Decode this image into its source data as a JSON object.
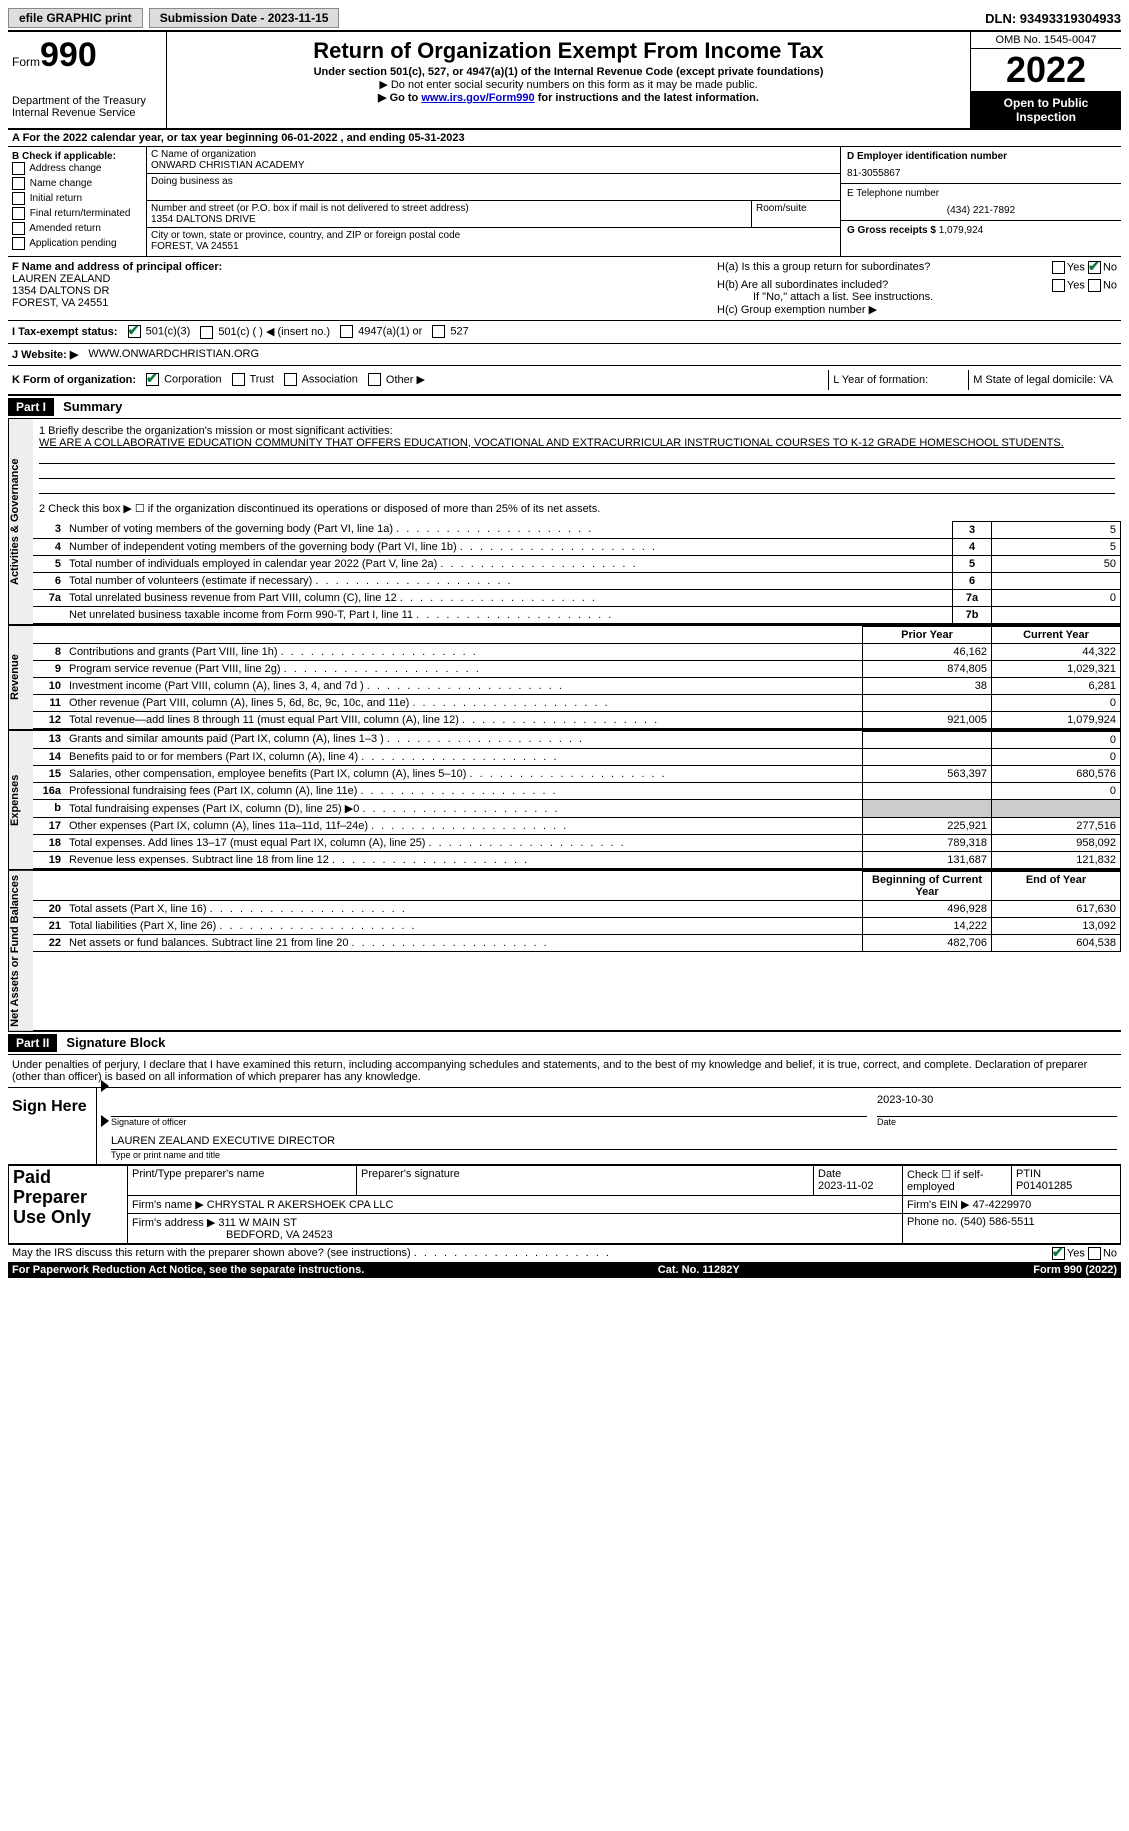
{
  "top": {
    "efile": "efile GRAPHIC print",
    "submission": "Submission Date - 2023-11-15",
    "dln": "DLN: 93493319304933"
  },
  "header": {
    "form_prefix": "Form",
    "form_no": "990",
    "dept": "Department of the Treasury\nInternal Revenue Service",
    "title": "Return of Organization Exempt From Income Tax",
    "subtitle": "Under section 501(c), 527, or 4947(a)(1) of the Internal Revenue Code (except private foundations)",
    "note1": "▶ Do not enter social security numbers on this form as it may be made public.",
    "note2_pre": "▶ Go to ",
    "note2_link": "www.irs.gov/Form990",
    "note2_post": " for instructions and the latest information.",
    "omb": "OMB No. 1545-0047",
    "year": "2022",
    "open": "Open to Public Inspection"
  },
  "row_a": "A For the 2022 calendar year, or tax year beginning 06-01-2022    , and ending 05-31-2023",
  "col_b": {
    "label": "B Check if applicable:",
    "opts": [
      "Address change",
      "Name change",
      "Initial return",
      "Final return/terminated",
      "Amended return",
      "Application pending"
    ]
  },
  "col_c": {
    "name_label": "C Name of organization",
    "name": "ONWARD CHRISTIAN ACADEMY",
    "dba_label": "Doing business as",
    "addr_label": "Number and street (or P.O. box if mail is not delivered to street address)",
    "room_label": "Room/suite",
    "addr": "1354 DALTONS DRIVE",
    "city_label": "City or town, state or province, country, and ZIP or foreign postal code",
    "city": "FOREST, VA  24551"
  },
  "col_d": {
    "ein_label": "D Employer identification number",
    "ein": "81-3055867",
    "phone_label": "E Telephone number",
    "phone": "(434) 221-7892",
    "gross_label": "G Gross receipts $",
    "gross": "1,079,924"
  },
  "f": {
    "label": "F Name and address of principal officer:",
    "name": "LAUREN ZEALAND",
    "addr1": "1354 DALTONS DR",
    "addr2": "FOREST, VA  24551"
  },
  "h": {
    "a": "H(a)  Is this a group return for subordinates?",
    "b": "H(b)  Are all subordinates included?",
    "b_note": "If \"No,\" attach a list. See instructions.",
    "c": "H(c)  Group exemption number ▶",
    "yes": "Yes",
    "no": "No"
  },
  "status": {
    "label": "I   Tax-exempt status:",
    "o1": "501(c)(3)",
    "o2": "501(c) (   ) ◀ (insert no.)",
    "o3": "4947(a)(1) or",
    "o4": "527"
  },
  "website": {
    "label": "J   Website: ▶",
    "value": "WWW.ONWARDCHRISTIAN.ORG"
  },
  "k": {
    "label": "K Form of organization:",
    "o1": "Corporation",
    "o2": "Trust",
    "o3": "Association",
    "o4": "Other ▶",
    "l": "L Year of formation:",
    "m": "M State of legal domicile: VA"
  },
  "part1": {
    "hdr": "Part I",
    "title": "Summary",
    "mission_label": "1   Briefly describe the organization's mission or most significant activities:",
    "mission": "WE ARE A COLLABORATIVE EDUCATION COMMUNITY THAT OFFERS EDUCATION, VOCATIONAL AND EXTRACURRICULAR INSTRUCTIONAL COURSES TO K-12 GRADE HOMESCHOOL STUDENTS.",
    "line2": "2   Check this box ▶ ☐  if the organization discontinued its operations or disposed of more than 25% of its net assets.",
    "gov_rows": [
      {
        "n": "3",
        "t": "Number of voting members of the governing body (Part VI, line 1a)",
        "b": "3",
        "v": "5"
      },
      {
        "n": "4",
        "t": "Number of independent voting members of the governing body (Part VI, line 1b)",
        "b": "4",
        "v": "5"
      },
      {
        "n": "5",
        "t": "Total number of individuals employed in calendar year 2022 (Part V, line 2a)",
        "b": "5",
        "v": "50"
      },
      {
        "n": "6",
        "t": "Total number of volunteers (estimate if necessary)",
        "b": "6",
        "v": ""
      },
      {
        "n": "7a",
        "t": "Total unrelated business revenue from Part VIII, column (C), line 12",
        "b": "7a",
        "v": "0"
      },
      {
        "n": "",
        "t": "Net unrelated business taxable income from Form 990-T, Part I, line 11",
        "b": "7b",
        "v": ""
      }
    ],
    "hdr_prior": "Prior Year",
    "hdr_current": "Current Year",
    "rev_rows": [
      {
        "n": "8",
        "t": "Contributions and grants (Part VIII, line 1h)",
        "p": "46,162",
        "c": "44,322"
      },
      {
        "n": "9",
        "t": "Program service revenue (Part VIII, line 2g)",
        "p": "874,805",
        "c": "1,029,321"
      },
      {
        "n": "10",
        "t": "Investment income (Part VIII, column (A), lines 3, 4, and 7d )",
        "p": "38",
        "c": "6,281"
      },
      {
        "n": "11",
        "t": "Other revenue (Part VIII, column (A), lines 5, 6d, 8c, 9c, 10c, and 11e)",
        "p": "",
        "c": "0"
      },
      {
        "n": "12",
        "t": "Total revenue—add lines 8 through 11 (must equal Part VIII, column (A), line 12)",
        "p": "921,005",
        "c": "1,079,924"
      }
    ],
    "exp_rows": [
      {
        "n": "13",
        "t": "Grants and similar amounts paid (Part IX, column (A), lines 1–3 )",
        "p": "",
        "c": "0"
      },
      {
        "n": "14",
        "t": "Benefits paid to or for members (Part IX, column (A), line 4)",
        "p": "",
        "c": "0"
      },
      {
        "n": "15",
        "t": "Salaries, other compensation, employee benefits (Part IX, column (A), lines 5–10)",
        "p": "563,397",
        "c": "680,576"
      },
      {
        "n": "16a",
        "t": "Professional fundraising fees (Part IX, column (A), line 11e)",
        "p": "",
        "c": "0"
      },
      {
        "n": "b",
        "t": "Total fundraising expenses (Part IX, column (D), line 25) ▶0",
        "p": "shade",
        "c": "shade"
      },
      {
        "n": "17",
        "t": "Other expenses (Part IX, column (A), lines 11a–11d, 11f–24e)",
        "p": "225,921",
        "c": "277,516"
      },
      {
        "n": "18",
        "t": "Total expenses. Add lines 13–17 (must equal Part IX, column (A), line 25)",
        "p": "789,318",
        "c": "958,092"
      },
      {
        "n": "19",
        "t": "Revenue less expenses. Subtract line 18 from line 12",
        "p": "131,687",
        "c": "121,832"
      }
    ],
    "hdr_begin": "Beginning of Current Year",
    "hdr_end": "End of Year",
    "net_rows": [
      {
        "n": "20",
        "t": "Total assets (Part X, line 16)",
        "p": "496,928",
        "c": "617,630"
      },
      {
        "n": "21",
        "t": "Total liabilities (Part X, line 26)",
        "p": "14,222",
        "c": "13,092"
      },
      {
        "n": "22",
        "t": "Net assets or fund balances. Subtract line 21 from line 20",
        "p": "482,706",
        "c": "604,538"
      }
    ],
    "side_gov": "Activities & Governance",
    "side_rev": "Revenue",
    "side_exp": "Expenses",
    "side_net": "Net Assets or Fund Balances"
  },
  "part2": {
    "hdr": "Part II",
    "title": "Signature Block",
    "decl": "Under penalties of perjury, I declare that I have examined this return, including accompanying schedules and statements, and to the best of my knowledge and belief, it is true, correct, and complete. Declaration of preparer (other than officer) is based on all information of which preparer has any knowledge.",
    "sign_here": "Sign Here",
    "sig_officer": "Signature of officer",
    "sig_date": "2023-10-30",
    "date_label": "Date",
    "officer_name": "LAUREN ZEALAND  EXECUTIVE DIRECTOR",
    "type_name": "Type or print name and title",
    "paid": "Paid Preparer Use Only",
    "p_name_label": "Print/Type preparer's name",
    "p_sig_label": "Preparer's signature",
    "p_date_label": "Date",
    "p_date": "2023-11-02",
    "p_check": "Check ☐ if self-employed",
    "ptin_label": "PTIN",
    "ptin": "P01401285",
    "firm_name_label": "Firm's name    ▶",
    "firm_name": "CHRYSTAL R AKERSHOEK CPA LLC",
    "firm_ein_label": "Firm's EIN ▶",
    "firm_ein": "47-4229970",
    "firm_addr_label": "Firm's address ▶",
    "firm_addr1": "311 W MAIN ST",
    "firm_addr2": "BEDFORD, VA  24523",
    "firm_phone_label": "Phone no.",
    "firm_phone": "(540) 586-5511",
    "discuss": "May the IRS discuss this return with the preparer shown above? (see instructions)",
    "yes": "Yes",
    "no": "No"
  },
  "footer": {
    "paperwork": "For Paperwork Reduction Act Notice, see the separate instructions.",
    "cat": "Cat. No. 11282Y",
    "form": "Form 990 (2022)"
  }
}
